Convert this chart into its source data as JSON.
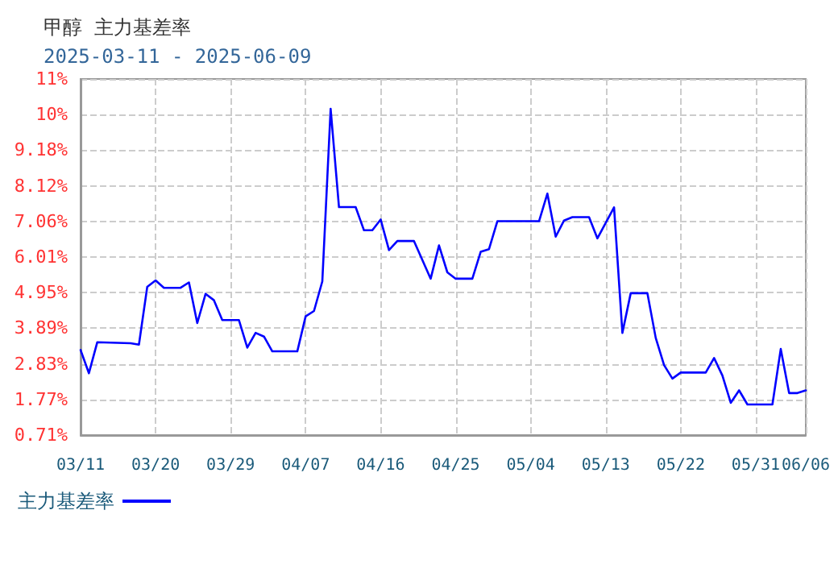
{
  "chart_data": {
    "type": "line",
    "title": "甲醇  主力基差率",
    "subtitle": "2025-03-11 - 2025-06-09",
    "x": [
      "2025-03-11",
      "2025-03-12",
      "2025-03-13",
      "2025-03-17",
      "2025-03-18",
      "2025-03-19",
      "2025-03-20",
      "2025-03-21",
      "2025-03-23",
      "2025-03-24",
      "2025-03-25",
      "2025-03-26",
      "2025-03-27",
      "2025-03-28",
      "2025-03-30",
      "2025-03-31",
      "2025-04-01",
      "2025-04-02",
      "2025-04-03",
      "2025-04-06",
      "2025-04-07",
      "2025-04-08",
      "2025-04-09",
      "2025-04-10",
      "2025-04-11",
      "2025-04-13",
      "2025-04-14",
      "2025-04-15",
      "2025-04-16",
      "2025-04-17",
      "2025-04-18",
      "2025-04-20",
      "2025-04-22",
      "2025-04-23",
      "2025-04-24",
      "2025-04-25",
      "2025-04-27",
      "2025-04-28",
      "2025-04-29",
      "2025-04-30",
      "2025-05-05",
      "2025-05-06",
      "2025-05-07",
      "2025-05-08",
      "2025-05-09",
      "2025-05-11",
      "2025-05-12",
      "2025-05-14",
      "2025-05-15",
      "2025-05-16",
      "2025-05-18",
      "2025-05-19",
      "2025-05-20",
      "2025-05-21",
      "2025-05-22",
      "2025-05-25",
      "2025-05-26",
      "2025-05-27",
      "2025-05-28",
      "2025-05-29",
      "2025-05-30",
      "2025-06-02",
      "2025-06-03",
      "2025-06-04",
      "2025-06-05",
      "2025-06-06"
    ],
    "series": [
      {
        "name": "主力基差率",
        "color": "#0000ff",
        "values": [
          3.24,
          2.55,
          3.47,
          3.44,
          3.4,
          5.12,
          5.31,
          5.09,
          5.09,
          5.25,
          4.04,
          4.91,
          4.72,
          4.13,
          4.13,
          3.31,
          3.75,
          3.64,
          3.2,
          3.2,
          4.24,
          4.4,
          5.28,
          10.41,
          7.49,
          7.49,
          6.8,
          6.8,
          7.12,
          6.21,
          6.48,
          6.48,
          5.36,
          6.35,
          5.55,
          5.36,
          5.36,
          6.16,
          6.24,
          7.07,
          7.07,
          7.89,
          6.61,
          7.09,
          7.19,
          7.19,
          6.56,
          7.48,
          3.75,
          4.93,
          4.93,
          3.6,
          2.79,
          2.39,
          2.57,
          2.57,
          3.0,
          2.48,
          1.67,
          2.04,
          1.62,
          1.62,
          3.27,
          1.96,
          1.96,
          2.04
        ]
      }
    ],
    "xlim": [
      "2025-03-11",
      "2025-06-06"
    ],
    "xticks": [
      {
        "value": "2025-03-11",
        "label": "03/11"
      },
      {
        "value": "2025-03-20",
        "label": "03/20"
      },
      {
        "value": "2025-03-29",
        "label": "03/29"
      },
      {
        "value": "2025-04-07",
        "label": "04/07"
      },
      {
        "value": "2025-04-16",
        "label": "04/16"
      },
      {
        "value": "2025-04-25",
        "label": "04/25"
      },
      {
        "value": "2025-05-04",
        "label": "05/04"
      },
      {
        "value": "2025-05-13",
        "label": "05/13"
      },
      {
        "value": "2025-05-22",
        "label": "05/22"
      },
      {
        "value": "2025-05-31",
        "label": "05/31"
      },
      {
        "value": "2025-06-06",
        "label": "06/06"
      }
    ],
    "ylim": [
      0.71,
      11.3
    ],
    "yticks": [
      {
        "value": 0.71,
        "label": "0.71%"
      },
      {
        "value": 1.77,
        "label": "1.77%"
      },
      {
        "value": 2.83,
        "label": "2.83%"
      },
      {
        "value": 3.89,
        "label": "3.89%"
      },
      {
        "value": 4.95,
        "label": "4.95%"
      },
      {
        "value": 6.01,
        "label": "6.01%"
      },
      {
        "value": 7.06,
        "label": "7.06%"
      },
      {
        "value": 8.12,
        "label": "8.12%"
      },
      {
        "value": 9.18,
        "label": "9.18%"
      },
      {
        "value": 10.24,
        "label": "10%"
      },
      {
        "value": 11.3,
        "label": "11%"
      }
    ],
    "grid": true,
    "legend": "bottom left",
    "marker": "none",
    "line_style": "solid"
  }
}
